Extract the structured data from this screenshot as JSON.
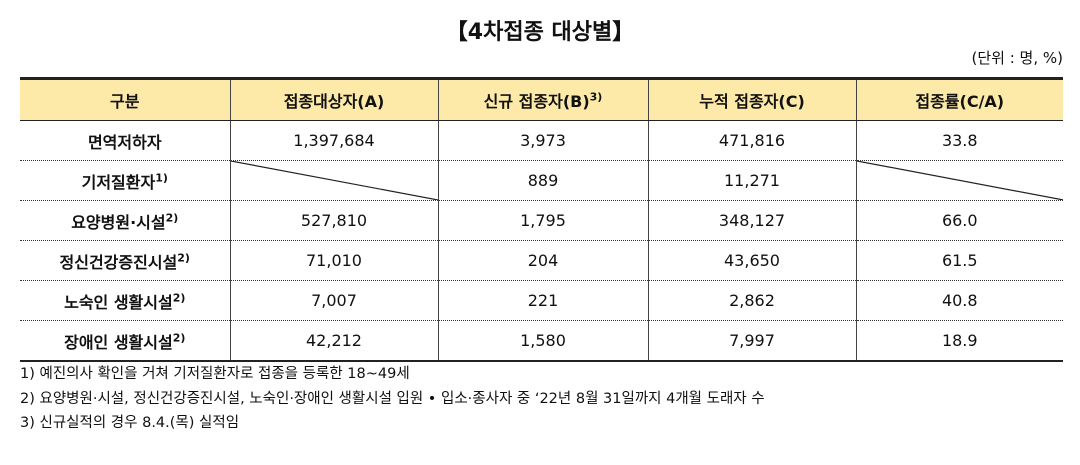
{
  "header": {
    "title": "【4차접종 대상별】",
    "unit": "(단위 : 명, %)"
  },
  "table": {
    "columns": [
      {
        "text": "구분"
      },
      {
        "text": "접종대상자(A)"
      },
      {
        "text": "신규 접종자(B)",
        "note": "3)"
      },
      {
        "text": "누적 접종자(C)"
      },
      {
        "text": "접종률(C/A)"
      }
    ],
    "rows": [
      {
        "label": "면역저하자",
        "cells": [
          "1,397,684",
          "3,973",
          "471,816",
          "33.8"
        ]
      },
      {
        "label": "기저질환자",
        "note": "1)",
        "cells": [
          null,
          "889",
          "11,271",
          null
        ]
      },
      {
        "label": "요양병원·시설",
        "note": "2)",
        "cells": [
          "527,810",
          "1,795",
          "348,127",
          "66.0"
        ]
      },
      {
        "label": "정신건강증진시설",
        "note": "2)",
        "cells": [
          "71,010",
          "204",
          "43,650",
          "61.5"
        ]
      },
      {
        "label": "노숙인 생활시설",
        "note": "2)",
        "cells": [
          "7,007",
          "221",
          "2,862",
          "40.8"
        ]
      },
      {
        "label": "장애인 생활시설",
        "note": "2)",
        "cells": [
          "42,212",
          "1,580",
          "7,997",
          "18.9"
        ]
      }
    ]
  },
  "footnotes": [
    "1) 예진의사 확인을 거쳐 기저질환자로 접종을 등록한 18~49세",
    "2) 요양병원·시설, 정신건강증진시설, 노숙인·장애인 생활시설 입원 • 입소·종사자 중 ‘22년 8월 31일까지 4개월 도래자 수",
    "3) 신규실적의 경우 8.4.(목) 실적임"
  ]
}
